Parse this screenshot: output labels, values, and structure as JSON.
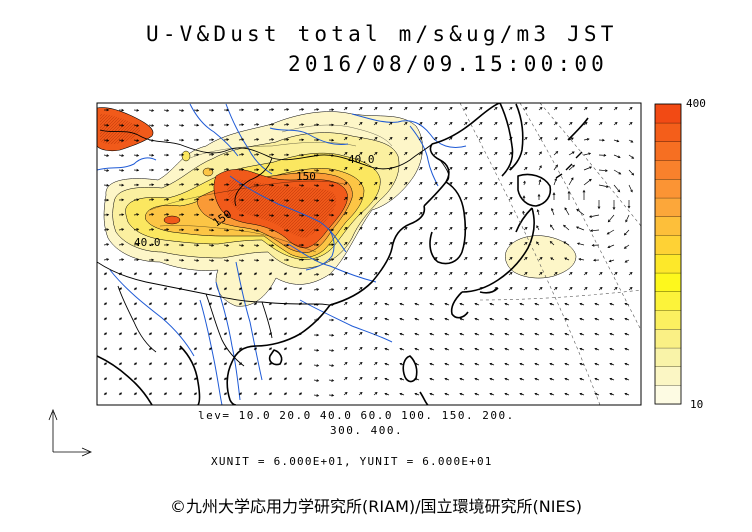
{
  "title": {
    "line1": "U-V&Dust total m/s&ug/m3 JST",
    "line2": "2016/08/09.15:00:00"
  },
  "contour_levels": {
    "line1": "lev= 10.0 20.0 40.0 60.0 100. 150. 200.",
    "line2": "300. 400."
  },
  "units_line": "XUNIT = 6.000E+01, YUNIT = 6.000E+01",
  "colorbar": {
    "max_label": "400",
    "min_label": "10",
    "colors": [
      "#fdfbe3",
      "#fbf6c4",
      "#f9f3a8",
      "#faf085",
      "#fbf060",
      "#fcf33a",
      "#fdf81d",
      "#fde82a",
      "#fed235",
      "#fdbf3a",
      "#fca73a",
      "#fb9434",
      "#f9812c",
      "#f66f22",
      "#f45e1a",
      "#f24a14"
    ]
  },
  "map_labels": [
    {
      "text": "40.0"
    },
    {
      "text": "150"
    },
    {
      "text": "150"
    },
    {
      "text": "40.0"
    }
  ],
  "copyright": "©九州大学応用力学研究所(RIAM)/国立環境研究所(NIES)"
}
